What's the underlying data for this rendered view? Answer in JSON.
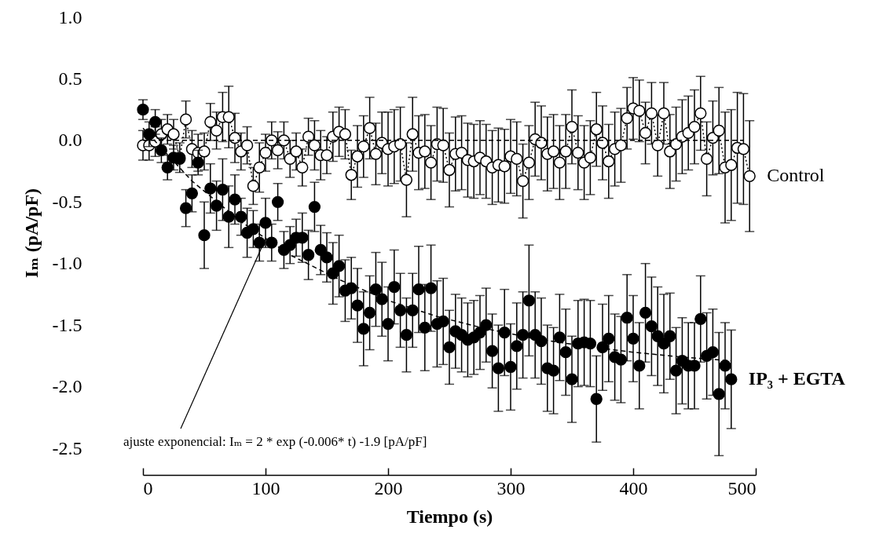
{
  "chart_data": {
    "type": "scatter",
    "xlabel": "Tiempo (s)",
    "ylabel": "Iₘ (pA/pF)",
    "xlim": [
      0,
      500
    ],
    "xticks": [
      0,
      100,
      200,
      300,
      400,
      500
    ],
    "ylim": [
      -2.5,
      1.0
    ],
    "yticks": [
      {
        "value": -2.5,
        "label": "-2.5"
      },
      {
        "value": -2.0,
        "label": "-2.0"
      },
      {
        "value": -1.5,
        "label": "-1.5"
      },
      {
        "value": -1.0,
        "label": "-1.0"
      },
      {
        "value": -0.5,
        "label": "-0.5"
      },
      {
        "value": 0.0,
        "label": "0.0"
      },
      {
        "value": 0.5,
        "label": "0.5"
      },
      {
        "value": 1.0,
        "label": "1.0"
      }
    ],
    "grid": false,
    "legend": false,
    "annotations": [
      {
        "text": "ajuste exponencial: Iₘ = 2 * exp (-0.006* t) -1.9 [pA/pF]",
        "x": 100,
        "y": -0.8
      }
    ],
    "series": [
      {
        "name": "Control",
        "type": "line",
        "color": "#000000",
        "marker": "circle",
        "line_style": "dotted",
        "x": [
          0,
          5,
          10,
          15,
          20,
          25,
          30,
          35,
          40,
          45,
          50,
          55,
          60,
          65,
          70,
          75,
          80,
          85,
          90,
          95,
          100,
          105,
          110,
          115,
          120,
          125,
          130,
          135,
          140,
          145,
          150,
          155,
          160,
          165,
          170,
          175,
          180,
          185,
          190,
          195,
          200,
          205,
          210,
          215,
          220,
          225,
          230,
          235,
          240,
          245,
          250,
          255,
          260,
          265,
          270,
          275,
          280,
          285,
          290,
          295,
          300,
          305,
          310,
          315,
          320,
          325,
          330,
          335,
          340,
          345,
          350,
          355,
          360,
          365,
          370,
          375,
          380,
          385,
          390,
          395,
          400,
          405,
          410,
          415,
          420,
          425,
          430,
          435,
          440,
          445,
          450,
          455,
          460,
          465,
          470,
          475,
          480,
          485,
          490,
          495
        ],
        "values": [
          -0.04,
          -0.04,
          -0.01,
          0.05,
          0.09,
          0.05,
          -0.14,
          0.17,
          -0.07,
          -0.1,
          -0.09,
          0.15,
          0.08,
          0.19,
          0.19,
          0.02,
          -0.09,
          -0.04,
          -0.37,
          -0.22,
          -0.1,
          0.0,
          -0.08,
          0.0,
          -0.15,
          -0.09,
          -0.22,
          0.03,
          -0.04,
          -0.12,
          -0.12,
          0.03,
          0.07,
          0.05,
          -0.28,
          -0.13,
          -0.05,
          0.1,
          -0.11,
          -0.02,
          -0.07,
          -0.05,
          -0.03,
          -0.32,
          0.05,
          -0.1,
          -0.09,
          -0.18,
          -0.03,
          -0.04,
          -0.24,
          -0.11,
          -0.1,
          -0.16,
          -0.17,
          -0.14,
          -0.17,
          -0.22,
          -0.2,
          -0.21,
          -0.13,
          -0.15,
          -0.33,
          -0.18,
          0.01,
          -0.02,
          -0.11,
          -0.09,
          -0.18,
          -0.09,
          0.11,
          -0.1,
          -0.18,
          -0.14,
          0.09,
          -0.02,
          -0.17,
          -0.07,
          -0.04,
          0.18,
          0.26,
          0.24,
          0.06,
          0.22,
          -0.04,
          0.22,
          -0.09,
          -0.03,
          0.03,
          0.06,
          0.11,
          0.22,
          -0.15,
          0.02,
          0.08,
          -0.22,
          -0.2,
          -0.06,
          -0.07,
          -0.29
        ],
        "errors": [
          0.12,
          0.12,
          0.12,
          0.12,
          0.12,
          0.12,
          0.12,
          0.15,
          0.15,
          0.15,
          0.15,
          0.15,
          0.15,
          0.2,
          0.25,
          0.2,
          0.15,
          0.15,
          0.15,
          0.2,
          0.15,
          0.15,
          0.15,
          0.15,
          0.15,
          0.15,
          0.15,
          0.15,
          0.2,
          0.2,
          0.15,
          0.2,
          0.2,
          0.2,
          0.2,
          0.25,
          0.25,
          0.25,
          0.25,
          0.25,
          0.3,
          0.3,
          0.3,
          0.3,
          0.3,
          0.3,
          0.3,
          0.3,
          0.3,
          0.3,
          0.3,
          0.3,
          0.3,
          0.3,
          0.3,
          0.3,
          0.3,
          0.3,
          0.3,
          0.3,
          0.3,
          0.3,
          0.3,
          0.3,
          0.3,
          0.3,
          0.3,
          0.3,
          0.3,
          0.3,
          0.3,
          0.3,
          0.3,
          0.3,
          0.3,
          0.3,
          0.3,
          0.3,
          0.3,
          0.25,
          0.25,
          0.25,
          0.25,
          0.25,
          0.25,
          0.25,
          0.3,
          0.3,
          0.3,
          0.3,
          0.3,
          0.3,
          0.3,
          0.3,
          0.35,
          0.45,
          0.45,
          0.45,
          0.45,
          0.45
        ]
      },
      {
        "type": "line",
        "color": "#000000",
        "marker": "none",
        "line_style": "dashed",
        "x": [
          0,
          490
        ],
        "values": [
          0,
          0
        ]
      },
      {
        "name": "IP₃ + EGTA",
        "color": "#000000",
        "marker": "circle",
        "x": [
          0,
          5,
          10,
          15,
          20,
          25,
          30,
          35,
          40,
          45,
          50,
          55,
          60,
          65,
          70,
          75,
          80,
          85,
          90,
          95,
          100,
          105,
          110,
          115,
          120,
          125,
          130,
          135,
          140,
          145,
          150,
          155,
          160,
          165,
          170,
          175,
          180,
          185,
          190,
          195,
          200,
          205,
          210,
          215,
          220,
          225,
          230,
          235,
          240,
          245,
          250,
          255,
          260,
          265,
          270,
          275,
          280,
          285,
          290,
          295,
          300,
          305,
          310,
          315,
          320,
          325,
          330,
          335,
          340,
          345,
          350,
          355,
          360,
          365,
          370,
          375,
          380,
          385,
          390,
          395,
          400,
          405,
          410,
          415,
          420,
          425,
          430,
          435,
          440,
          445,
          450,
          455,
          460,
          465,
          470,
          475,
          480
        ],
        "values": [
          0.25,
          0.05,
          0.15,
          -0.08,
          -0.22,
          -0.14,
          -0.15,
          -0.55,
          -0.43,
          -0.18,
          -0.77,
          -0.39,
          -0.53,
          -0.4,
          -0.62,
          -0.48,
          -0.62,
          -0.75,
          -0.72,
          -0.83,
          -0.67,
          -0.83,
          -0.5,
          -0.89,
          -0.85,
          -0.79,
          -0.79,
          -0.93,
          -0.54,
          -0.89,
          -0.95,
          -1.08,
          -1.02,
          -1.22,
          -1.2,
          -1.34,
          -1.53,
          -1.4,
          -1.21,
          -1.29,
          -1.49,
          -1.19,
          -1.38,
          -1.58,
          -1.38,
          -1.21,
          -1.52,
          -1.2,
          -1.49,
          -1.47,
          -1.68,
          -1.55,
          -1.58,
          -1.62,
          -1.6,
          -1.56,
          -1.5,
          -1.71,
          -1.85,
          -1.56,
          -1.84,
          -1.67,
          -1.58,
          -1.3,
          -1.58,
          -1.63,
          -1.85,
          -1.87,
          -1.6,
          -1.72,
          -1.94,
          -1.65,
          -1.64,
          -1.65,
          -2.1,
          -1.68,
          -1.61,
          -1.76,
          -1.78,
          -1.44,
          -1.61,
          -1.83,
          -1.4,
          -1.51,
          -1.59,
          -1.65,
          -1.59,
          -1.87,
          -1.79,
          -1.83,
          -1.83,
          -1.45,
          -1.75,
          -1.72,
          -2.06,
          -1.83,
          -1.94
        ],
        "errors": [
          0.08,
          0.1,
          0.1,
          0.1,
          0.1,
          0.1,
          null,
          0.15,
          0.15,
          0.1,
          0.27,
          0.2,
          0.2,
          0.25,
          0.25,
          0.2,
          0.15,
          0.2,
          0.15,
          0.15,
          0.2,
          0.15,
          0.15,
          0.15,
          0.15,
          0.15,
          0.2,
          0.2,
          0.2,
          0.2,
          0.2,
          0.25,
          0.25,
          0.25,
          0.25,
          0.3,
          0.3,
          0.3,
          0.3,
          0.3,
          0.3,
          0.3,
          0.3,
          0.3,
          0.3,
          0.35,
          0.35,
          0.35,
          0.35,
          0.35,
          0.3,
          0.3,
          0.3,
          0.3,
          0.3,
          0.3,
          0.3,
          0.3,
          0.35,
          0.35,
          0.35,
          0.35,
          0.35,
          0.45,
          0.35,
          0.35,
          0.35,
          0.35,
          0.35,
          0.35,
          0.35,
          0.35,
          0.35,
          0.35,
          0.35,
          0.35,
          0.35,
          0.35,
          0.35,
          0.35,
          0.35,
          0.35,
          0.4,
          0.4,
          0.4,
          0.4,
          0.35,
          0.35,
          0.35,
          0.35,
          0.35,
          0.35,
          0.35,
          0.35,
          0.5,
          0.35,
          0.4
        ]
      },
      {
        "type": "line",
        "color": "#000000",
        "marker": "none",
        "line_style": "dashed",
        "x": [
          0,
          40,
          80,
          120,
          160,
          200,
          240,
          280,
          320,
          360,
          400,
          440,
          480
        ],
        "values": [
          0.1,
          -0.33,
          -0.66,
          -0.93,
          -1.13,
          -1.3,
          -1.43,
          -1.53,
          -1.61,
          -1.67,
          -1.72,
          -1.76,
          -1.79
        ]
      }
    ]
  }
}
